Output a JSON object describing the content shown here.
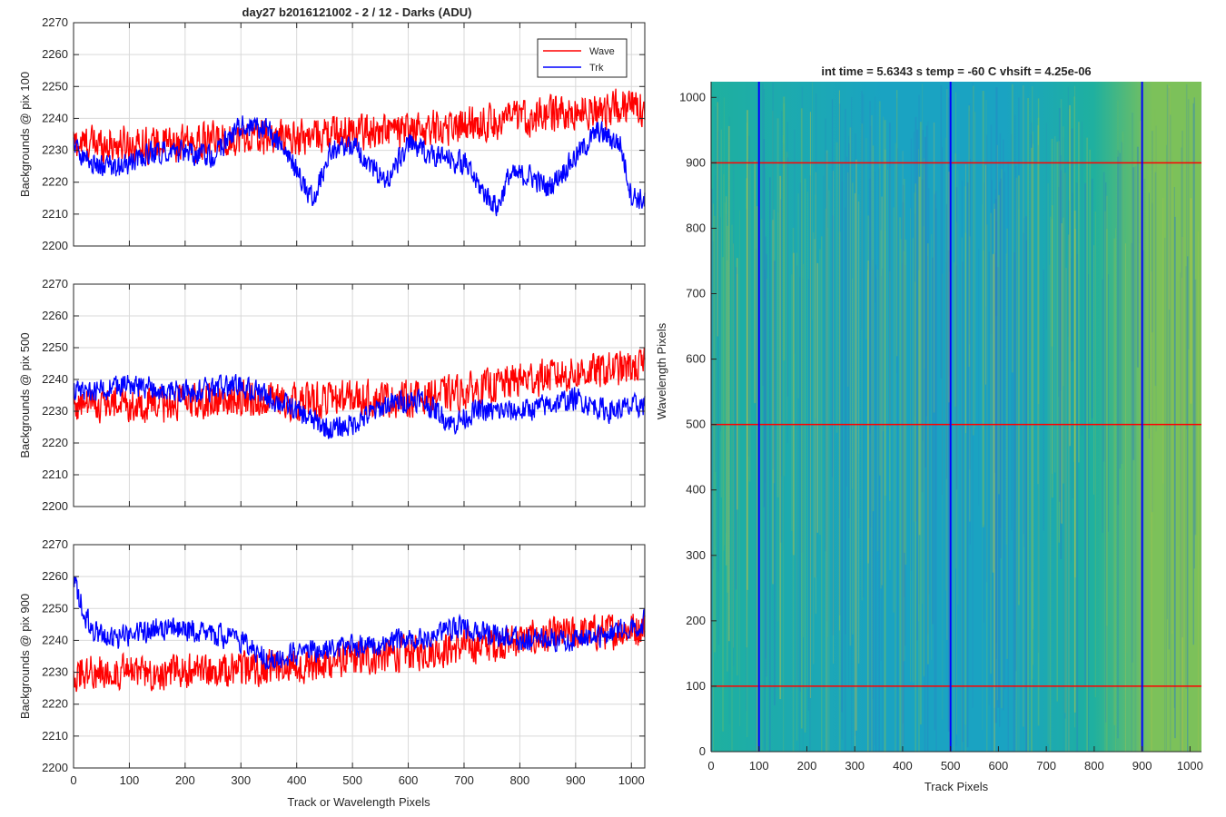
{
  "figure": {
    "title": "day27 b2016121002 - 2 / 12 - Darks (ADU)",
    "xlabel": "Track or Wavelength Pixels"
  },
  "colors": {
    "wave": "#ff0000",
    "trk": "#0000ff",
    "grid": "#d9d9d9",
    "axis": "#262626"
  },
  "chart_data": [
    {
      "type": "line",
      "ylabel": "Backgrounds @ pix 100",
      "xlim": [
        0,
        1024
      ],
      "ylim": [
        2200,
        2270
      ],
      "x_ticks": [
        0,
        100,
        200,
        300,
        400,
        500,
        600,
        700,
        800,
        900,
        1000
      ],
      "y_ticks": [
        2200,
        2210,
        2220,
        2230,
        2240,
        2250,
        2260,
        2270
      ],
      "grid": true,
      "legend": {
        "placement": "top-right",
        "entries": [
          "Wave",
          "Trk"
        ]
      },
      "series": [
        {
          "name": "Wave",
          "color": "#ff0000",
          "noise": 7,
          "trend": [
            [
              0,
              2232
            ],
            [
              100,
              2232
            ],
            [
              200,
              2232
            ],
            [
              300,
              2234
            ],
            [
              400,
              2234
            ],
            [
              500,
              2236
            ],
            [
              600,
              2236
            ],
            [
              700,
              2238
            ],
            [
              800,
              2240
            ],
            [
              900,
              2242
            ],
            [
              1024,
              2244
            ]
          ]
        },
        {
          "name": "Trk",
          "color": "#0000ff",
          "noise": 4.5,
          "trend": [
            [
              0,
              2232
            ],
            [
              30,
              2226
            ],
            [
              80,
              2224
            ],
            [
              150,
              2230
            ],
            [
              250,
              2228
            ],
            [
              300,
              2238
            ],
            [
              350,
              2236
            ],
            [
              400,
              2224
            ],
            [
              430,
              2214
            ],
            [
              460,
              2230
            ],
            [
              500,
              2232
            ],
            [
              540,
              2224
            ],
            [
              560,
              2220
            ],
            [
              600,
              2232
            ],
            [
              650,
              2228
            ],
            [
              700,
              2226
            ],
            [
              730,
              2218
            ],
            [
              760,
              2212
            ],
            [
              780,
              2222
            ],
            [
              820,
              2222
            ],
            [
              850,
              2218
            ],
            [
              900,
              2228
            ],
            [
              940,
              2236
            ],
            [
              980,
              2232
            ],
            [
              1000,
              2216
            ],
            [
              1024,
              2214
            ]
          ]
        }
      ]
    },
    {
      "type": "line",
      "ylabel": "Backgrounds @ pix 500",
      "xlim": [
        0,
        1024
      ],
      "ylim": [
        2200,
        2270
      ],
      "x_ticks": [
        0,
        100,
        200,
        300,
        400,
        500,
        600,
        700,
        800,
        900,
        1000
      ],
      "y_ticks": [
        2200,
        2210,
        2220,
        2230,
        2240,
        2250,
        2260,
        2270
      ],
      "grid": true,
      "series": [
        {
          "name": "Wave",
          "color": "#ff0000",
          "noise": 7,
          "trend": [
            [
              0,
              2232
            ],
            [
              150,
              2232
            ],
            [
              300,
              2234
            ],
            [
              400,
              2233
            ],
            [
              500,
              2234
            ],
            [
              600,
              2234
            ],
            [
              700,
              2236
            ],
            [
              800,
              2240
            ],
            [
              900,
              2242
            ],
            [
              1024,
              2244
            ]
          ]
        },
        {
          "name": "Trk",
          "color": "#0000ff",
          "noise": 4.5,
          "trend": [
            [
              0,
              2236
            ],
            [
              100,
              2238
            ],
            [
              200,
              2236
            ],
            [
              300,
              2238
            ],
            [
              380,
              2232
            ],
            [
              460,
              2224
            ],
            [
              500,
              2226
            ],
            [
              560,
              2232
            ],
            [
              620,
              2234
            ],
            [
              680,
              2226
            ],
            [
              720,
              2230
            ],
            [
              800,
              2230
            ],
            [
              900,
              2234
            ],
            [
              960,
              2230
            ],
            [
              1024,
              2232
            ]
          ]
        }
      ]
    },
    {
      "type": "line",
      "ylabel": "Backgrounds @ pix 900",
      "xlim": [
        0,
        1024
      ],
      "ylim": [
        2200,
        2270
      ],
      "x_ticks": [
        0,
        100,
        200,
        300,
        400,
        500,
        600,
        700,
        800,
        900,
        1000
      ],
      "y_ticks": [
        2200,
        2210,
        2220,
        2230,
        2240,
        2250,
        2260,
        2270
      ],
      "grid": true,
      "series": [
        {
          "name": "Wave",
          "color": "#ff0000",
          "noise": 7,
          "trend": [
            [
              0,
              2230
            ],
            [
              200,
              2230
            ],
            [
              400,
              2232
            ],
            [
              500,
              2234
            ],
            [
              600,
              2236
            ],
            [
              700,
              2238
            ],
            [
              800,
              2240
            ],
            [
              900,
              2242
            ],
            [
              1024,
              2244
            ]
          ]
        },
        {
          "name": "Trk",
          "color": "#0000ff",
          "noise": 4.5,
          "trend": [
            [
              0,
              2258
            ],
            [
              30,
              2244
            ],
            [
              60,
              2240
            ],
            [
              150,
              2244
            ],
            [
              250,
              2242
            ],
            [
              300,
              2240
            ],
            [
              350,
              2234
            ],
            [
              400,
              2236
            ],
            [
              500,
              2238
            ],
            [
              600,
              2240
            ],
            [
              700,
              2244
            ],
            [
              800,
              2240
            ],
            [
              900,
              2240
            ],
            [
              1000,
              2244
            ],
            [
              1024,
              2246
            ]
          ]
        }
      ]
    },
    {
      "type": "heatmap",
      "title": "int time = 5.6343 s   temp = -60 C   vhsift = 4.25e-06",
      "xlabel": "Track Pixels",
      "ylabel": "Wavelength Pixels",
      "xlim": [
        0,
        1024
      ],
      "ylim": [
        0,
        1024
      ],
      "x_ticks": [
        0,
        100,
        200,
        300,
        400,
        500,
        600,
        700,
        800,
        900,
        1000
      ],
      "y_ticks": [
        0,
        100,
        200,
        300,
        400,
        500,
        600,
        700,
        800,
        900,
        1000
      ],
      "colormap": [
        "#2a7ec4",
        "#1aa3c2",
        "#1fb09f",
        "#7cc15a",
        "#c8c440"
      ],
      "vertical_markers": {
        "color": "#0000ff",
        "x": [
          100,
          500,
          900
        ]
      },
      "horizontal_markers": {
        "color": "#ff0000",
        "y": [
          100,
          500,
          900
        ]
      }
    }
  ]
}
